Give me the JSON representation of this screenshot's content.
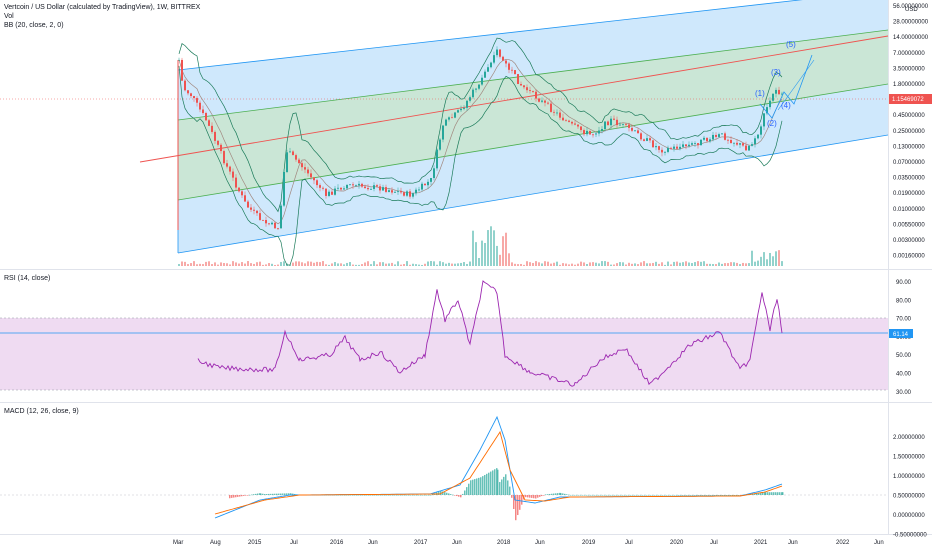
{
  "header": {
    "symbol_line": "Vertcoin / US Dollar (calculated by TradingView), 1W, BITTREX",
    "volume_label": "Vol",
    "bb_label": "BB (20, close, 2, 0)",
    "currency": "USD"
  },
  "rsi": {
    "label": "RSI (14, close)",
    "ticks": [
      "90.00",
      "80.00",
      "70.00",
      "60.00",
      "50.00",
      "40.00",
      "30.00"
    ],
    "current": "61.14"
  },
  "macd": {
    "label": "MACD (12, 26, close, 9)",
    "ticks": [
      "2.00000000",
      "1.50000000",
      "1.00000000",
      "0.50000000",
      "0.00000000",
      "-0.50000000"
    ]
  },
  "price_axis": {
    "ticks": [
      "56.00000000",
      "28.00000000",
      "14.00000000",
      "7.00000000",
      "3.50000000",
      "1.80000000",
      "0.90000000",
      "0.45000000",
      "0.25000000",
      "0.13000000",
      "0.07000000",
      "0.03500000",
      "0.01900000",
      "0.01000000",
      "0.00550000",
      "0.00300000",
      "0.00160000"
    ],
    "current": "1.15469072"
  },
  "time_axis": {
    "labels": [
      "Mar",
      "Aug",
      "2015",
      "Jul",
      "2016",
      "Jun",
      "2017",
      "Jun",
      "2018",
      "Jun",
      "2019",
      "Jul",
      "2020",
      "Jul",
      "2021",
      "Jun",
      "2022",
      "Jun"
    ]
  },
  "annotations": {
    "waves": [
      "(1)",
      "(2)",
      "(3)",
      "(4)",
      "(5)"
    ]
  },
  "colors": {
    "up": "#26a69a",
    "down": "#ef5350",
    "channel_outer": "#bbdefb",
    "channel_inner": "#c8e6c9",
    "channel_line": "#2196f3",
    "median": "#ef5350",
    "bb": "#1b7b5a",
    "rsi": "#9c27b0",
    "rsi_band": "#e1bee7",
    "macd": "#2196f3",
    "signal": "#ff6d00",
    "price_tag": "#ef5350",
    "rsi_tag": "#2196f3"
  },
  "chart_data": [
    {
      "type": "line",
      "panel": "price",
      "scale": "log",
      "x": [
        "2014-03",
        "2014-08",
        "2015-01",
        "2015-07",
        "2016-01",
        "2016-06",
        "2017-01",
        "2017-06",
        "2018-01",
        "2018-06",
        "2019-01",
        "2019-07",
        "2020-01",
        "2020-07",
        "2021-01",
        "2021-05"
      ],
      "series": [
        {
          "name": "",
          "values": [
            2.3,
            0.6,
            0.12,
            0.3,
            0.05,
            0.06,
            0.05,
            0.6,
            10.0,
            1.5,
            0.45,
            0.5,
            0.25,
            0.35,
            0.3,
            1.15
          ]
        }
      ],
      "ylim": [
        0.0016,
        56
      ]
    },
    {
      "type": "line",
      "panel": "rsi",
      "x": [
        "2014-05",
        "2015-06",
        "2015-07",
        "2016-01",
        "2016-06",
        "2017-01",
        "2017-05",
        "2017-12",
        "2018-04",
        "2019-01",
        "2019-06",
        "2020-01",
        "2020-10",
        "2021-01",
        "2021-03",
        "2021-05"
      ],
      "series": [
        {
          "name": "",
          "values": [
            47,
            43,
            62,
            45,
            58,
            48,
            90,
            91,
            46,
            35,
            52,
            38,
            60,
            42,
            85,
            61.14
          ]
        }
      ],
      "ylim": [
        30,
        90
      ]
    },
    {
      "type": "line",
      "panel": "macd",
      "x": [
        "2014-06",
        "2015-06",
        "2016-06",
        "2017-06",
        "2017-12",
        "2018-03",
        "2018-08",
        "2019-06",
        "2020-06",
        "2021-01",
        "2021-05"
      ],
      "series": [
        {
          "name": "",
          "values": [
            -0.5,
            0.0,
            0.0,
            0.1,
            1.8,
            0.4,
            -0.2,
            0.05,
            0.0,
            0.1,
            0.3
          ]
        },
        {
          "name": "",
          "values": [
            -0.45,
            -0.02,
            0.0,
            0.05,
            1.5,
            0.8,
            -0.1,
            0.03,
            0.0,
            0.05,
            0.25
          ]
        }
      ],
      "ylim": [
        -0.6,
        2.1
      ]
    }
  ]
}
